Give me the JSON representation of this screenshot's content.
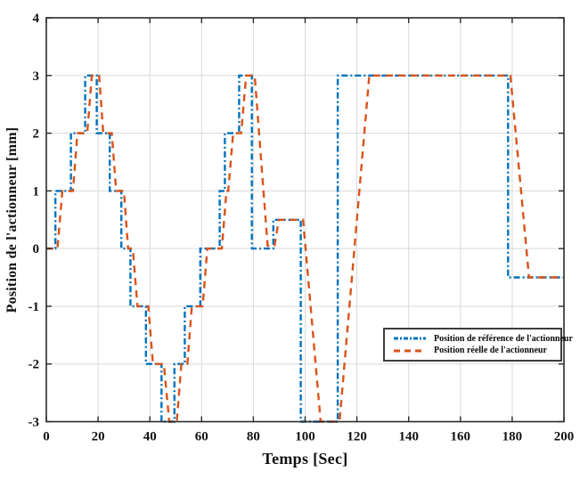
{
  "figure": {
    "background": "#ffffff",
    "kind": "matlab-style-plot"
  },
  "colors": {
    "grid": "#d9d9d9",
    "axis": "#2b2b2b",
    "tick_text": "#111111",
    "legend_border": "#3d3d3d",
    "series_reference": "#0072BD",
    "series_actual": "#D95319"
  },
  "chart_data": {
    "type": "line",
    "title": "",
    "xlabel": "Temps [Sec]",
    "ylabel": "Position de l'actionneur [mm]",
    "xlim": [
      0,
      200
    ],
    "ylim": [
      -3,
      4
    ],
    "xticks": [
      0,
      20,
      40,
      60,
      80,
      100,
      120,
      140,
      160,
      180,
      200
    ],
    "yticks": [
      -3,
      -2,
      -1,
      0,
      1,
      2,
      3,
      4
    ],
    "grid": true,
    "legend_position": "middle-right",
    "series": [
      {
        "name": "Position de référence de l'actionneur",
        "color": "#0072BD",
        "style": "dash-dot",
        "width": 2.4,
        "points": [
          [
            0,
            0
          ],
          [
            3.5,
            0
          ],
          [
            3.5,
            1
          ],
          [
            9.5,
            1
          ],
          [
            9.5,
            2
          ],
          [
            15,
            2
          ],
          [
            15,
            3
          ],
          [
            19.5,
            3
          ],
          [
            19.5,
            2
          ],
          [
            24.5,
            2
          ],
          [
            24.5,
            1
          ],
          [
            29,
            1
          ],
          [
            29,
            0
          ],
          [
            32.5,
            0
          ],
          [
            32.5,
            -1
          ],
          [
            38.5,
            -1
          ],
          [
            38.5,
            -2
          ],
          [
            44.5,
            -2
          ],
          [
            44.5,
            -3
          ],
          [
            49.5,
            -3
          ],
          [
            49.5,
            -2
          ],
          [
            53.5,
            -2
          ],
          [
            53.5,
            -1
          ],
          [
            59.5,
            -1
          ],
          [
            59.5,
            0
          ],
          [
            67,
            0
          ],
          [
            67,
            1
          ],
          [
            69,
            1
          ],
          [
            69,
            2
          ],
          [
            74.5,
            2
          ],
          [
            74.5,
            3
          ],
          [
            79.4,
            3
          ],
          [
            79.4,
            0
          ],
          [
            87.7,
            0
          ],
          [
            87.7,
            0.5
          ],
          [
            98.3,
            0.5
          ],
          [
            98.3,
            -3
          ],
          [
            112.6,
            -3
          ],
          [
            112.6,
            3
          ],
          [
            178.4,
            3
          ],
          [
            178.4,
            -0.5
          ],
          [
            200,
            -0.5
          ]
        ]
      },
      {
        "name": "Position réelle de l'actionneur",
        "color": "#D95319",
        "style": "dashed",
        "width": 2.4,
        "points": [
          [
            0,
            0
          ],
          [
            4.3,
            0
          ],
          [
            6.2,
            1
          ],
          [
            10.3,
            1
          ],
          [
            12,
            2
          ],
          [
            15.8,
            2
          ],
          [
            17.6,
            3
          ],
          [
            20.4,
            3
          ],
          [
            22,
            2
          ],
          [
            25.3,
            2
          ],
          [
            27,
            1
          ],
          [
            30,
            1
          ],
          [
            31.6,
            0
          ],
          [
            33.4,
            0
          ],
          [
            35.2,
            -1
          ],
          [
            39.4,
            -1
          ],
          [
            41.2,
            -2
          ],
          [
            45.4,
            -2
          ],
          [
            47.5,
            -3
          ],
          [
            50.4,
            -3
          ],
          [
            52.2,
            -2
          ],
          [
            54.5,
            -2
          ],
          [
            56.2,
            -1
          ],
          [
            60.4,
            -1
          ],
          [
            62.2,
            0
          ],
          [
            67.8,
            0
          ],
          [
            69.6,
            1
          ],
          [
            70.3,
            1
          ],
          [
            72.2,
            2
          ],
          [
            75.3,
            2
          ],
          [
            77.2,
            3
          ],
          [
            80.5,
            3
          ],
          [
            85.5,
            0.05
          ],
          [
            88.2,
            0.05
          ],
          [
            89.8,
            0.5
          ],
          [
            99.2,
            0.5
          ],
          [
            106,
            -3
          ],
          [
            113.3,
            -3
          ],
          [
            124.8,
            3
          ],
          [
            179.3,
            3
          ],
          [
            186.5,
            -0.5
          ],
          [
            200,
            -0.5
          ]
        ]
      }
    ]
  }
}
